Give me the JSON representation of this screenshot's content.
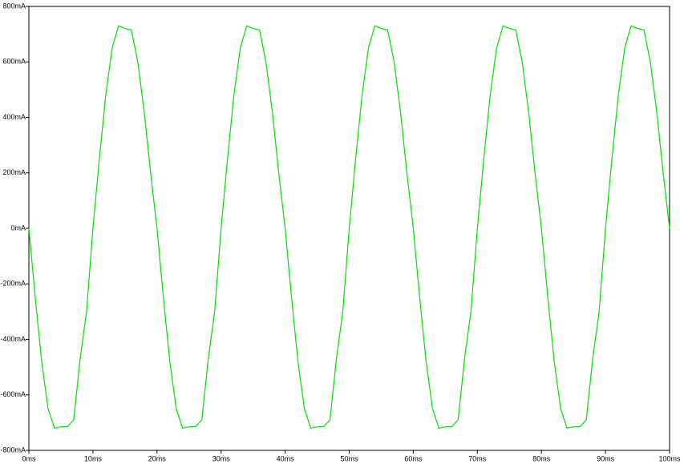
{
  "chart_data": {
    "type": "line",
    "x": [
      0,
      1,
      2,
      3,
      4,
      5,
      6,
      7,
      8,
      9,
      10,
      11,
      12,
      13,
      14,
      15,
      16,
      17,
      18,
      19,
      20,
      21,
      22,
      23,
      24,
      25,
      26,
      27,
      28,
      29,
      30,
      31,
      32,
      33,
      34,
      35,
      36,
      37,
      38,
      39,
      40,
      41,
      42,
      43,
      44,
      45,
      46,
      47,
      48,
      49,
      50,
      51,
      52,
      53,
      54,
      55,
      56,
      57,
      58,
      59,
      60,
      61,
      62,
      63,
      64,
      65,
      66,
      67,
      68,
      69,
      70,
      71,
      72,
      73,
      74,
      75,
      76,
      77,
      78,
      79,
      80,
      81,
      82,
      83,
      84,
      85,
      86,
      87,
      88,
      89,
      90,
      91,
      92,
      93,
      94,
      95,
      96,
      97,
      98,
      99,
      100
    ],
    "series": [
      {
        "color": "#00e000",
        "values": [
          0,
          -250,
          -480,
          -650,
          -720,
          -715,
          -715,
          -690,
          -470,
          -300,
          0,
          250,
          480,
          650,
          730,
          720,
          715,
          600,
          420,
          200,
          0,
          -250,
          -480,
          -650,
          -720,
          -715,
          -715,
          -690,
          -470,
          -300,
          0,
          250,
          480,
          650,
          730,
          720,
          715,
          600,
          420,
          200,
          0,
          -250,
          -480,
          -650,
          -720,
          -715,
          -715,
          -690,
          -470,
          -300,
          0,
          250,
          480,
          650,
          730,
          720,
          715,
          600,
          420,
          200,
          0,
          -250,
          -480,
          -650,
          -720,
          -715,
          -715,
          -690,
          -470,
          -300,
          0,
          250,
          480,
          650,
          730,
          720,
          715,
          600,
          420,
          200,
          0,
          -250,
          -480,
          -650,
          -720,
          -715,
          -715,
          -690,
          -470,
          -300,
          0,
          250,
          480,
          650,
          730,
          720,
          715,
          600,
          420,
          200,
          0
        ]
      }
    ],
    "xlim": [
      0,
      100
    ],
    "xticks": [
      {
        "value": 0,
        "label": "0ms"
      },
      {
        "value": 10,
        "label": "10ms"
      },
      {
        "value": 20,
        "label": "20ms"
      },
      {
        "value": 30,
        "label": "30ms"
      },
      {
        "value": 40,
        "label": "40ms"
      },
      {
        "value": 50,
        "label": "50ms"
      },
      {
        "value": 60,
        "label": "60ms"
      },
      {
        "value": 70,
        "label": "70ms"
      },
      {
        "value": 80,
        "label": "80ms"
      },
      {
        "value": 90,
        "label": "90ms"
      },
      {
        "value": 100,
        "label": "100ms"
      }
    ],
    "ylim": [
      -800,
      800
    ],
    "yticks": [
      {
        "value": -800,
        "label": "-800mA"
      },
      {
        "value": -600,
        "label": "-600mA"
      },
      {
        "value": -400,
        "label": "-400mA"
      },
      {
        "value": -200,
        "label": "-200mA"
      },
      {
        "value": 0,
        "label": "0mA"
      },
      {
        "value": 200,
        "label": "200mA"
      },
      {
        "value": 400,
        "label": "400mA"
      },
      {
        "value": 600,
        "label": "600mA"
      },
      {
        "value": 800,
        "label": "800mA"
      }
    ]
  }
}
